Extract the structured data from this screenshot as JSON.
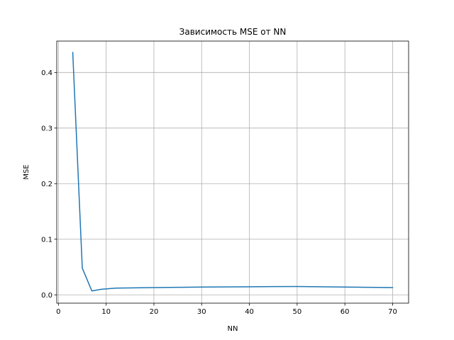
{
  "chart_data": {
    "type": "line",
    "title": "Зависимость MSE от NN",
    "xlabel": "NN",
    "ylabel": "MSE",
    "xlim": [
      -0.35,
      73.35
    ],
    "ylim": [
      -0.015,
      0.4565
    ],
    "xticks": [
      0,
      10,
      20,
      30,
      40,
      50,
      60,
      70
    ],
    "yticks": [
      0.0,
      0.1,
      0.2,
      0.3,
      0.4
    ],
    "xtick_labels": [
      "0",
      "10",
      "20",
      "30",
      "40",
      "50",
      "60",
      "70"
    ],
    "ytick_labels": [
      "0.0",
      "0.1",
      "0.2",
      "0.3",
      "0.4"
    ],
    "grid": true,
    "legend": false,
    "series": [
      {
        "color": "#1f77b4",
        "x": [
          3,
          5,
          7,
          9,
          12,
          20,
          25,
          30,
          40,
          50,
          60,
          70
        ],
        "y": [
          0.436,
          0.048,
          0.007,
          0.01,
          0.012,
          0.013,
          0.0135,
          0.014,
          0.0145,
          0.015,
          0.014,
          0.013
        ]
      }
    ]
  }
}
